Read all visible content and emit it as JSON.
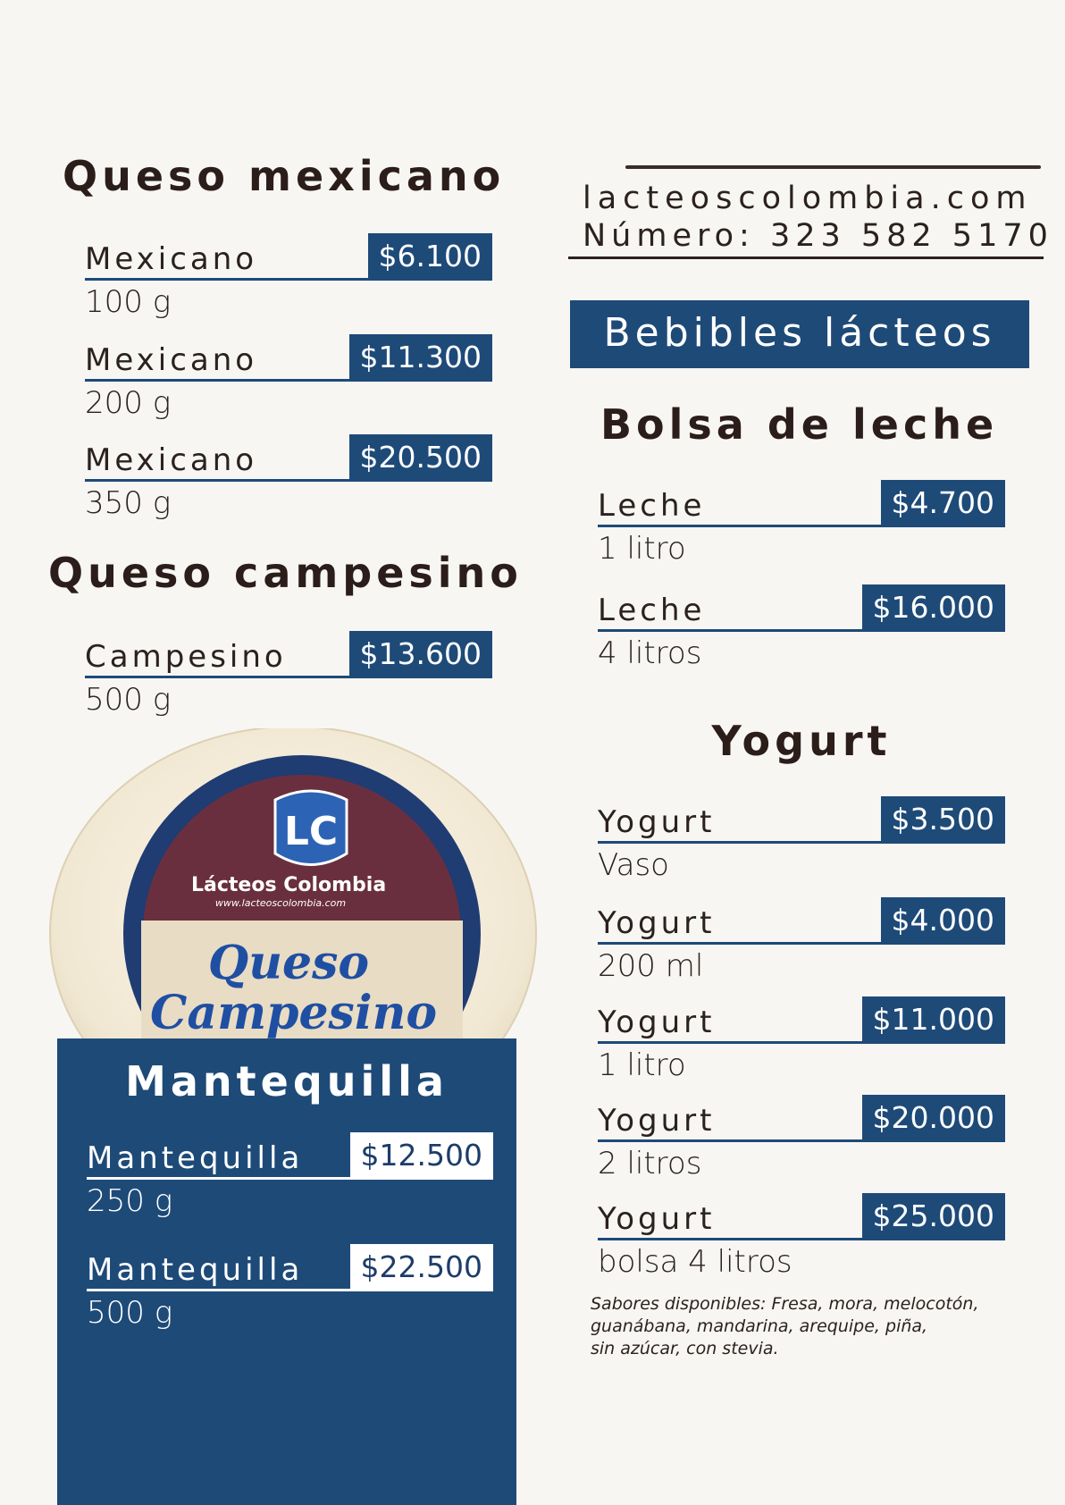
{
  "queso_mexicano": {
    "title": "Queso mexicano",
    "items": [
      {
        "name": "Mexicano",
        "price": "$6.100",
        "size": "100 g"
      },
      {
        "name": "Mexicano",
        "price": "$11.300",
        "size": "200 g"
      },
      {
        "name": "Mexicano",
        "price": "$20.500",
        "size": "350 g"
      }
    ]
  },
  "queso_campesino": {
    "title": "Queso campesino",
    "items": [
      {
        "name": "Campesino",
        "price": "$13.600",
        "size": "500 g"
      }
    ]
  },
  "product_label": {
    "brand": "Lácteos Colombia",
    "website": "www.lacteoscolombia.com",
    "product": "Queso Campesino"
  },
  "mantequilla": {
    "title": "Mantequilla",
    "items": [
      {
        "name": "Mantequilla",
        "price": "$12.500",
        "size": "250 g"
      },
      {
        "name": "Mantequilla",
        "price": "$22.500",
        "size": "500 g"
      }
    ]
  },
  "contact": {
    "website": "lacteoscolombia.com",
    "phone": "Número: 323 582 5170"
  },
  "bebibles": {
    "banner": "Bebibles lácteos"
  },
  "bolsa_leche": {
    "title": "Bolsa de leche",
    "items": [
      {
        "name": "Leche",
        "price": "$4.700",
        "size": "1 litro"
      },
      {
        "name": "Leche",
        "price": "$16.000",
        "size": "4 litros"
      }
    ]
  },
  "yogurt": {
    "title": "Yogurt",
    "items": [
      {
        "name": "Yogurt",
        "price": "$3.500",
        "size": "Vaso"
      },
      {
        "name": "Yogurt",
        "price": "$4.000",
        "size": "200 ml"
      },
      {
        "name": "Yogurt",
        "price": "$11.000",
        "size": "1 litro"
      },
      {
        "name": "Yogurt",
        "price": "$20.000",
        "size": "2 litros"
      },
      {
        "name": "Yogurt",
        "price": "$25.000",
        "size": "bolsa 4 litros"
      }
    ],
    "flavors_line1": "Sabores disponibles: Fresa, mora, melocotón,",
    "flavors_line2": "guanábana, mandarina, arequipe, piña,",
    "flavors_line3": "sin azúcar, con stevia."
  }
}
